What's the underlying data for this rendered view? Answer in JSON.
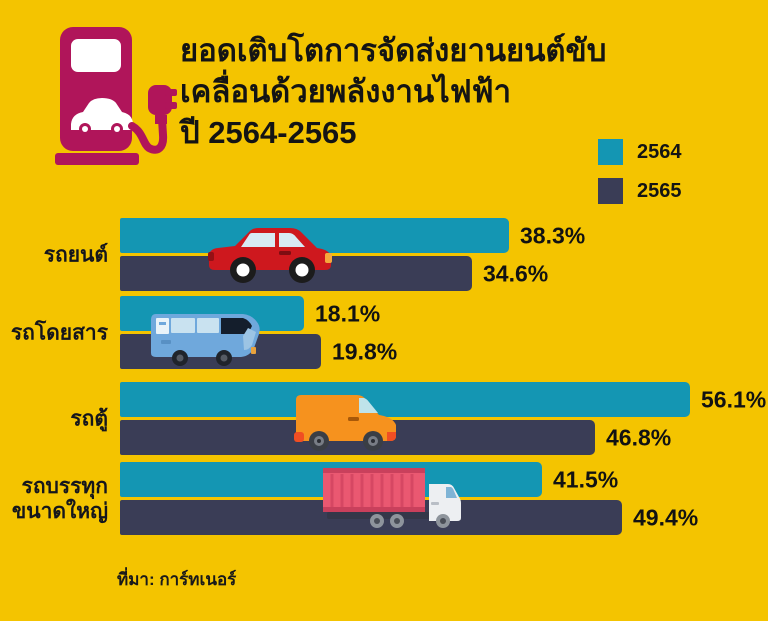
{
  "meta": {
    "background_color": "#F4C400",
    "color_2564": "#1496B3",
    "color_2565": "#3A3D56",
    "icon_color": "#B0155A",
    "text_color": "#141414"
  },
  "header": {
    "icon": "ev-charging-station-icon",
    "title_lines": [
      "ยอดเติบโตการจัดส่งยานยนต์ขับ",
      "เคลื่อนด้วยพลังงานไฟฟ้า",
      "ปี 2564-2565"
    ]
  },
  "legend": [
    {
      "label": "2564",
      "color": "#1496B3"
    },
    {
      "label": "2565",
      "color": "#3A3D56"
    }
  ],
  "chart_data": {
    "type": "bar",
    "orientation": "horizontal",
    "title": "ยอดเติบโตการจัดส่งยานยนต์ขับเคลื่อนด้วยพลังงานไฟฟ้า ปี 2564-2565",
    "categories": [
      "รถยนต์",
      "รถโดยสาร",
      "รถตู้",
      "รถบรรทุกขนาดใหญ่"
    ],
    "categories_display": [
      [
        "รถยนต์"
      ],
      [
        "รถโดยสาร"
      ],
      [
        "รถตู้"
      ],
      [
        "รถบรรทุก",
        "ขนาดใหญ่"
      ]
    ],
    "series": [
      {
        "name": "2564",
        "color": "#1496B3",
        "values": [
          38.3,
          18.1,
          56.1,
          41.5
        ]
      },
      {
        "name": "2565",
        "color": "#3A3D56",
        "values": [
          34.6,
          19.8,
          46.8,
          49.4
        ]
      }
    ],
    "value_suffix": "%",
    "xlim": [
      0,
      61
    ],
    "grid": false,
    "legend_position": "top-right",
    "row_illustrations": [
      "red-car",
      "blue-bus",
      "orange-van",
      "pink-container-truck"
    ]
  },
  "source": {
    "text": "ที่มา: การ์ทเนอร์"
  }
}
